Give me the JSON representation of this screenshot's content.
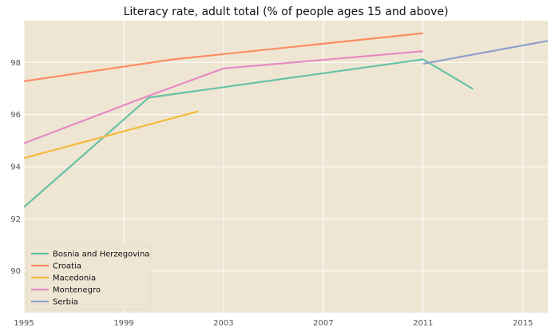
{
  "chart_data": {
    "type": "line",
    "title": "Literacy rate, adult total (% of people ages 15 and above)",
    "xlabel": "",
    "ylabel": "",
    "xlim": [
      1995,
      2016
    ],
    "ylim": [
      88.4,
      99.6
    ],
    "x_ticks": [
      1995,
      1999,
      2003,
      2007,
      2011,
      2015
    ],
    "y_ticks": [
      90,
      92,
      94,
      96,
      98
    ],
    "grid": true,
    "legend_position": "lower-left",
    "background": "#EEE6D3",
    "series": [
      {
        "name": "Bosnia and Herzegovina",
        "color": "#66C2A5",
        "points": [
          [
            1995,
            92.45
          ],
          [
            2000,
            96.65
          ],
          [
            2011,
            98.12
          ],
          [
            2013,
            96.98
          ]
        ]
      },
      {
        "name": "Croatia",
        "color": "#FC8D62",
        "points": [
          [
            1995,
            97.28
          ],
          [
            2001,
            98.12
          ],
          [
            2011,
            99.12
          ]
        ]
      },
      {
        "name": "Macedonia",
        "color": "#F6B93B",
        "points": [
          [
            1995,
            94.33
          ],
          [
            2002,
            96.13
          ]
        ]
      },
      {
        "name": "Montenegro",
        "color": "#E78AC3",
        "points": [
          [
            1995,
            94.9
          ],
          [
            2000,
            96.72
          ],
          [
            2003,
            97.77
          ],
          [
            2011,
            98.43
          ]
        ]
      },
      {
        "name": "Serbia",
        "color": "#8DA0CB",
        "points": [
          [
            2011,
            97.95
          ],
          [
            2016,
            98.83
          ]
        ]
      }
    ]
  }
}
